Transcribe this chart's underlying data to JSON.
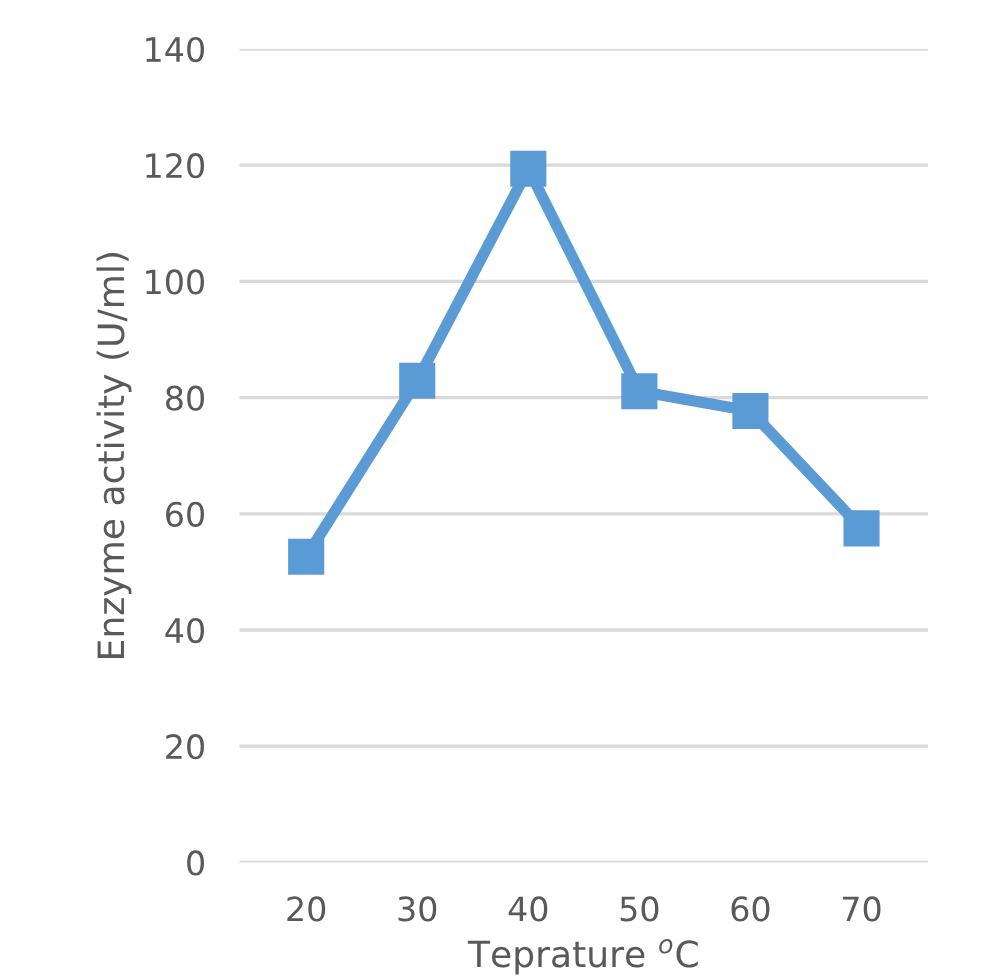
{
  "chart_data": {
    "type": "line",
    "xlabel": "Teprature $^{o}$C",
    "ylabel": "Enzyme activity (U/ml)",
    "categories": [
      "20",
      "30",
      "40",
      "50",
      "60",
      "70"
    ],
    "series": [
      {
        "color": "#5b9bd5",
        "values": [
          52.6,
          82.9,
          119.4,
          81.1,
          77.7,
          57.5
        ]
      }
    ],
    "ylim": [
      0,
      140
    ],
    "yticks": [
      0,
      20,
      40,
      60,
      80,
      100,
      120,
      140
    ],
    "grid": "y",
    "marker": "square",
    "line_style": "solid"
  }
}
